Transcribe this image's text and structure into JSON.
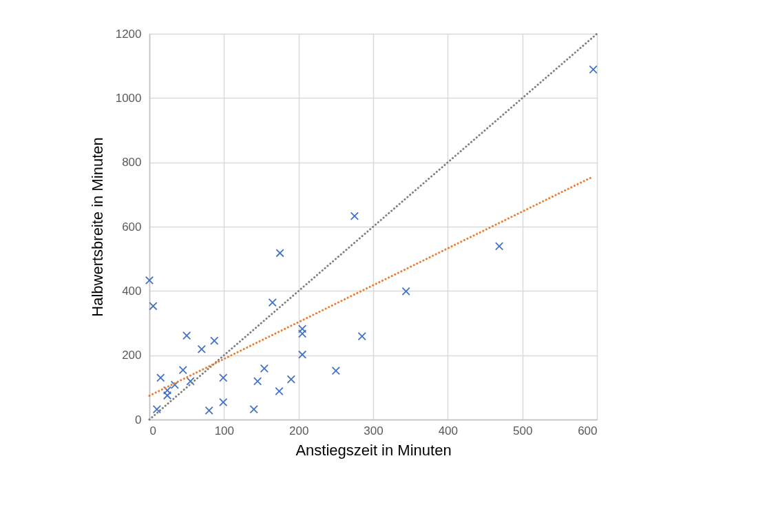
{
  "chart_data": {
    "type": "scatter",
    "xlabel": "Anstiegszeit in Minuten",
    "ylabel": "Halbwertsbreite in Minuten",
    "xlim": [
      0,
      600
    ],
    "xticks": [
      0,
      100,
      200,
      300,
      400,
      500,
      600
    ],
    "ylim": [
      0,
      1200
    ],
    "yticks": [
      0,
      200,
      400,
      600,
      800,
      1000,
      1200
    ],
    "grid": true,
    "series": [
      {
        "color": "#4472c4",
        "marker": "cross",
        "x": [
          0,
          5,
          10,
          15,
          24,
          24,
          34,
          45,
          50,
          55,
          70,
          80,
          87,
          99,
          99,
          140,
          145,
          154,
          165,
          175,
          174,
          190,
          205,
          205,
          205,
          250,
          275,
          285,
          344,
          469,
          595
        ],
        "values": [
          433,
          353,
          32,
          130,
          91,
          75,
          108,
          154,
          261,
          119,
          219,
          28,
          245,
          130,
          54,
          32,
          119,
          159,
          364,
          518,
          88,
          125,
          282,
          267,
          202,
          152,
          633,
          259,
          399,
          539,
          1089
        ]
      },
      {
        "type": "line",
        "color": "#7f7f7f",
        "line_style": "dotted",
        "marker": "none",
        "x": [
          0,
          600
        ],
        "values": [
          0,
          1200
        ]
      },
      {
        "type": "line",
        "color": "#ed7d31",
        "line_style": "dotted",
        "marker": "none",
        "x": [
          0,
          595
        ],
        "values": [
          74,
          756
        ]
      }
    ]
  }
}
